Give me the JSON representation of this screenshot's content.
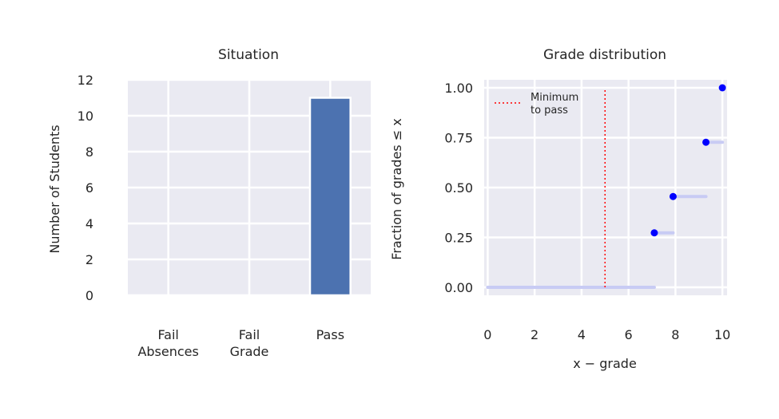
{
  "chart_data": [
    {
      "type": "bar",
      "title": "Situation",
      "xlabel": "",
      "ylabel": "Number of Students",
      "categories": [
        [
          "Fail",
          "Absences"
        ],
        [
          "Fail",
          "Grade"
        ],
        [
          "Pass"
        ]
      ],
      "values": [
        0,
        0,
        11
      ],
      "ylim": [
        0,
        12
      ],
      "yticks": [
        "0",
        "2",
        "4",
        "6",
        "8",
        "10",
        "12"
      ],
      "bar_color": "#4c72b0",
      "background": "#eaeaf2",
      "grid": true
    },
    {
      "type": "line",
      "title": "Grade distribution",
      "xlabel": "x − grade",
      "ylabel": "Fraction of grades ≤ x",
      "xlim": [
        -0.15,
        10.2
      ],
      "ylim": [
        -0.04,
        1.04
      ],
      "xticks": [
        "0",
        "2",
        "4",
        "6",
        "8",
        "10"
      ],
      "yticks": [
        "0.00",
        "0.25",
        "0.50",
        "0.75",
        "1.00"
      ],
      "series": [
        {
          "kind": "step",
          "color": "#c8cbf4",
          "segments": [
            {
              "x0": 0,
              "x1": 7.1,
              "y": 0.0
            },
            {
              "x0": 7.1,
              "x1": 7.9,
              "y": 0.273
            },
            {
              "x0": 7.9,
              "x1": 9.3,
              "y": 0.455
            },
            {
              "x0": 9.3,
              "x1": 10.0,
              "y": 0.727
            }
          ]
        },
        {
          "kind": "points",
          "color": "#0000ff",
          "points": [
            {
              "x": 7.1,
              "y": 0.273
            },
            {
              "x": 7.9,
              "y": 0.455
            },
            {
              "x": 9.3,
              "y": 0.727
            },
            {
              "x": 10.0,
              "y": 1.0
            }
          ]
        }
      ],
      "threshold": {
        "name": "Minimum to pass",
        "x": 5,
        "color": "#ff0000"
      },
      "legend": {
        "lines": [
          "Minimum",
          "to pass"
        ],
        "placement": "top-left"
      },
      "background": "#eaeaf2",
      "grid": true
    }
  ]
}
